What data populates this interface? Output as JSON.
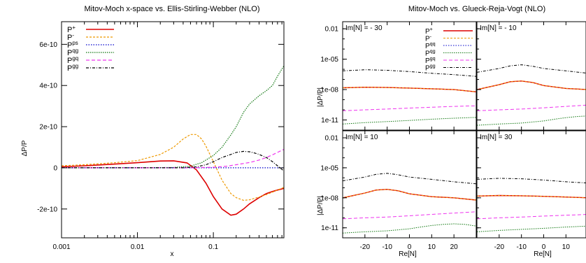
{
  "chart_data": [
    {
      "type": "line",
      "title": "Mitov-Moch x-space vs. Ellis-Stirling-Webber (NLO)",
      "xlabel": "x",
      "ylabel": "ΔP/P",
      "xscale": "log",
      "xlim": [
        0.001,
        0.85
      ],
      "ylim": [
        -3.4e-10,
        7.1e-10
      ],
      "x_ticks": [
        0.001,
        0.01,
        0.1
      ],
      "x_tick_labels": [
        "0.001",
        "0.01",
        "0.1"
      ],
      "y_ticks": [
        -2e-10,
        0,
        2e-10,
        4e-10,
        6e-10
      ],
      "y_tick_labels": [
        "-2e-10",
        "0",
        "2e-10",
        "4e-10",
        "6e-10"
      ],
      "grid": false,
      "legend_position": "top-left",
      "series": [
        {
          "name": "P+",
          "base": "P",
          "sup": "+",
          "color": "#dd0000",
          "dash": "",
          "width": 1.6,
          "x": [
            0.001,
            0.002,
            0.005,
            0.01,
            0.02,
            0.03,
            0.045,
            0.06,
            0.08,
            0.1,
            0.13,
            0.17,
            0.2,
            0.25,
            0.3,
            0.4,
            0.5,
            0.6,
            0.7,
            0.85
          ],
          "y": [
            5e-12,
            1e-11,
            1.8e-11,
            2.5e-11,
            3.3e-11,
            3.4e-11,
            2.4e-11,
            -1e-11,
            -7.5e-11,
            -1.4e-10,
            -2e-10,
            -2.3e-10,
            -2.25e-10,
            -2e-10,
            -1.75e-10,
            -1.45e-10,
            -1.25e-10,
            -1.15e-10,
            -1.08e-10,
            -1e-10
          ]
        },
        {
          "name": "P-",
          "base": "P",
          "sup": "-",
          "color": "#ee9900",
          "dash": "3,2",
          "width": 1.2,
          "x": [
            0.001,
            0.002,
            0.005,
            0.01,
            0.02,
            0.03,
            0.04,
            0.05,
            0.06,
            0.07,
            0.08,
            0.1,
            0.13,
            0.17,
            0.2,
            0.25,
            0.3,
            0.4,
            0.5,
            0.6,
            0.7,
            0.85
          ],
          "y": [
            1e-11,
            1.5e-11,
            2.5e-11,
            3.5e-11,
            6.5e-11,
            1e-10,
            1.4e-10,
            1.62e-10,
            1.62e-10,
            1.4e-10,
            1.05e-10,
            3e-11,
            -6e-11,
            -1.25e-10,
            -1.45e-10,
            -1.58e-10,
            -1.55e-10,
            -1.42e-10,
            -1.3e-10,
            -1.18e-10,
            -1.08e-10,
            -9.5e-11
          ]
        },
        {
          "name": "Pps",
          "base": "P",
          "sup": "ps",
          "color": "#0000cc",
          "dash": "1.5,2",
          "width": 1.2,
          "x": [
            0.001,
            0.01,
            0.1,
            0.85
          ],
          "y": [
            0,
            0,
            0,
            0
          ]
        },
        {
          "name": "Pqg",
          "base": "P",
          "sup": "qg",
          "color": "#117711",
          "dash": "1.5,1.5",
          "width": 1.2,
          "x": [
            0.001,
            0.01,
            0.03,
            0.05,
            0.07,
            0.1,
            0.13,
            0.17,
            0.2,
            0.25,
            0.3,
            0.4,
            0.5,
            0.6,
            0.7,
            0.8,
            0.85
          ],
          "y": [
            0,
            0,
            2e-12,
            8e-12,
            2.5e-11,
            6e-11,
            1e-10,
            1.6e-10,
            2e-10,
            2.7e-10,
            3.1e-10,
            3.5e-10,
            3.75e-10,
            4e-10,
            4.45e-10,
            4.8e-10,
            4.95e-10
          ]
        },
        {
          "name": "Pgq",
          "base": "P",
          "sup": "gq",
          "color": "#ee33ee",
          "dash": "5,3",
          "width": 1.2,
          "x": [
            0.001,
            0.01,
            0.05,
            0.1,
            0.15,
            0.2,
            0.3,
            0.4,
            0.5,
            0.6,
            0.7,
            0.85
          ],
          "y": [
            0,
            0,
            0,
            3e-12,
            8e-12,
            1.5e-11,
            2.6e-11,
            3.8e-11,
            5e-11,
            6.3e-11,
            7.5e-11,
            9e-11
          ]
        },
        {
          "name": "Pgg",
          "base": "P",
          "sup": "gg",
          "color": "#000000",
          "dash": "4,2,1,2",
          "width": 1.2,
          "x": [
            0.001,
            0.01,
            0.04,
            0.06,
            0.08,
            0.1,
            0.13,
            0.17,
            0.2,
            0.25,
            0.3,
            0.35,
            0.4,
            0.5,
            0.6,
            0.7,
            0.85
          ],
          "y": [
            0,
            0,
            0,
            5e-12,
            1.5e-11,
            3e-11,
            5e-11,
            6.5e-11,
            7.5e-11,
            8e-11,
            7.8e-11,
            7.2e-11,
            6.5e-11,
            5e-11,
            3e-11,
            1e-11,
            -1.5e-11
          ]
        }
      ]
    },
    {
      "type": "line",
      "title": "Mitov-Moch vs. Glueck-Reja-Vogt (NLO)",
      "xlabel": "Re[N]",
      "ylabel": "|ΔP/P|",
      "yscale": "log",
      "xlim": [
        -30,
        30
      ],
      "ylim": [
        1e-12,
        0.05
      ],
      "x_ticks": [
        -20,
        -10,
        0,
        10,
        20
      ],
      "x_tick_labels": [
        "-20",
        "-10",
        "0",
        "10",
        "20"
      ],
      "y_ticks": [
        0.01,
        1e-05,
        1e-08,
        1e-11
      ],
      "y_tick_labels": [
        "0.01",
        "1e-05",
        "1e-08",
        "1e-11"
      ],
      "grid": false,
      "legend_position": "top-left",
      "legend_labels": [
        {
          "base": "P",
          "sup": "+"
        },
        {
          "base": "P",
          "sup": "-"
        },
        {
          "base": "P",
          "sup": "qq"
        },
        {
          "base": "P",
          "sup": "qg"
        },
        {
          "base": "P",
          "sup": "gq"
        },
        {
          "base": "P",
          "sup": "gg"
        }
      ],
      "series_styles": [
        {
          "color": "#dd0000",
          "dash": "",
          "width": 1.4
        },
        {
          "color": "#ee9900",
          "dash": "3,2",
          "width": 1.0
        },
        {
          "color": "#0000cc",
          "dash": "1.5,2",
          "width": 1.0
        },
        {
          "color": "#117711",
          "dash": "1.5,1.5",
          "width": 1.0
        },
        {
          "color": "#ee33ee",
          "dash": "5,3",
          "width": 1.0
        },
        {
          "color": "#000000",
          "dash": "4,2,1,2",
          "width": 1.0
        }
      ],
      "panels": [
        {
          "label": "Im[N] = - 30",
          "row": 0,
          "col": 0,
          "series": [
            {
              "x": [
                -30,
                -20,
                -10,
                0,
                10,
                20,
                30
              ],
              "y": [
                1.5e-08,
                1.7e-08,
                1.6e-08,
                1.4e-08,
                1.2e-08,
                1e-08,
                6e-09
              ]
            },
            {
              "x": [
                -30,
                -20,
                -10,
                0,
                10,
                20,
                30
              ],
              "y": [
                1.5e-08,
                1.7e-08,
                1.6e-08,
                1.4e-08,
                1.2e-08,
                1e-08,
                6e-09
              ]
            },
            {
              "x": [],
              "y": []
            },
            {
              "x": [
                -30,
                -20,
                -10,
                0,
                10,
                20,
                30
              ],
              "y": [
                4e-12,
                5.5e-12,
                7e-12,
                9e-12,
                1.2e-11,
                1.5e-11,
                1.8e-11
              ]
            },
            {
              "x": [
                -30,
                -20,
                -10,
                0,
                10,
                20,
                30
              ],
              "y": [
                8e-11,
                1e-10,
                1.2e-10,
                1.5e-10,
                1.8e-10,
                2.2e-10,
                2.5e-10
              ]
            },
            {
              "x": [
                -30,
                -20,
                -10,
                0,
                10,
                20,
                30
              ],
              "y": [
                7e-07,
                9e-07,
                8e-07,
                6e-07,
                4e-07,
                3e-07,
                2e-07
              ]
            }
          ]
        },
        {
          "label": "Im[N] = - 10",
          "row": 0,
          "col": 1,
          "series": [
            {
              "x": [
                -30,
                -20,
                -15,
                -10,
                -5,
                0,
                10,
                20,
                30
              ],
              "y": [
                1e-08,
                3e-08,
                6e-08,
                7e-08,
                5e-08,
                2.5e-08,
                1.3e-08,
                1e-08,
                6e-09
              ]
            },
            {
              "x": [
                -30,
                -20,
                -15,
                -10,
                -5,
                0,
                10,
                20,
                30
              ],
              "y": [
                1e-08,
                3e-08,
                6e-08,
                7e-08,
                5e-08,
                2.5e-08,
                1.3e-08,
                1e-08,
                6e-09
              ]
            },
            {
              "x": [],
              "y": []
            },
            {
              "x": [
                -30,
                -20,
                -10,
                0,
                5,
                10,
                15,
                20,
                25,
                30
              ],
              "y": [
                3e-12,
                4e-12,
                5e-12,
                8e-12,
                1.2e-11,
                1.7e-11,
                2.2e-11,
                2.5e-11,
                2.2e-11,
                1.5e-11
              ]
            },
            {
              "x": [
                -30,
                -20,
                -10,
                0,
                10,
                20,
                30
              ],
              "y": [
                8e-11,
                1e-10,
                1.2e-10,
                1.6e-10,
                2.2e-10,
                3e-10,
                4e-10
              ]
            },
            {
              "x": [
                -30,
                -20,
                -15,
                -10,
                -5,
                0,
                10,
                20,
                30
              ],
              "y": [
                5e-07,
                1.2e-06,
                2.2e-06,
                2.8e-06,
                2e-06,
                1.2e-06,
                7e-07,
                4e-07,
                2.5e-07
              ]
            }
          ]
        },
        {
          "label": "Im[N] = 10",
          "row": 1,
          "col": 0,
          "series": [
            {
              "x": [
                -30,
                -20,
                -15,
                -10,
                -5,
                0,
                10,
                20,
                30
              ],
              "y": [
                1e-08,
                3e-08,
                6e-08,
                7e-08,
                5e-08,
                2.5e-08,
                1.3e-08,
                1e-08,
                6e-09
              ]
            },
            {
              "x": [
                -30,
                -20,
                -15,
                -10,
                -5,
                0,
                10,
                20,
                30
              ],
              "y": [
                1e-08,
                3e-08,
                6e-08,
                7e-08,
                5e-08,
                2.5e-08,
                1.3e-08,
                1e-08,
                6e-09
              ]
            },
            {
              "x": [],
              "y": []
            },
            {
              "x": [
                -30,
                -20,
                -10,
                0,
                5,
                10,
                15,
                20,
                25,
                30
              ],
              "y": [
                3e-12,
                4e-12,
                5e-12,
                8e-12,
                1.2e-11,
                1.7e-11,
                2.2e-11,
                2.5e-11,
                2.2e-11,
                1.5e-11
              ]
            },
            {
              "x": [
                -30,
                -20,
                -10,
                0,
                10,
                20,
                30
              ],
              "y": [
                8e-11,
                1e-10,
                1.2e-10,
                1.6e-10,
                2.2e-10,
                3e-10,
                4e-10
              ]
            },
            {
              "x": [
                -30,
                -20,
                -15,
                -10,
                -5,
                0,
                10,
                20,
                30
              ],
              "y": [
                5e-07,
                1.2e-06,
                2.2e-06,
                2.8e-06,
                2e-06,
                1.2e-06,
                7e-07,
                4e-07,
                2.5e-07
              ]
            }
          ]
        },
        {
          "label": "Im[N] = 30",
          "row": 1,
          "col": 1,
          "series": [
            {
              "x": [
                -30,
                -20,
                -10,
                0,
                10,
                20,
                30
              ],
              "y": [
                1.5e-08,
                1.7e-08,
                1.6e-08,
                1.4e-08,
                1.2e-08,
                1e-08,
                6e-09
              ]
            },
            {
              "x": [
                -30,
                -20,
                -10,
                0,
                10,
                20,
                30
              ],
              "y": [
                1.5e-08,
                1.7e-08,
                1.6e-08,
                1.4e-08,
                1.2e-08,
                1e-08,
                6e-09
              ]
            },
            {
              "x": [],
              "y": []
            },
            {
              "x": [
                -30,
                -20,
                -10,
                0,
                10,
                20,
                30
              ],
              "y": [
                4e-12,
                5.5e-12,
                7e-12,
                9e-12,
                1.2e-11,
                1.5e-11,
                1.8e-11
              ]
            },
            {
              "x": [
                -30,
                -20,
                -10,
                0,
                10,
                20,
                30
              ],
              "y": [
                8e-11,
                1e-10,
                1.2e-10,
                1.5e-10,
                1.8e-10,
                2.2e-10,
                2.5e-10
              ]
            },
            {
              "x": [
                -30,
                -20,
                -10,
                0,
                10,
                20,
                30
              ],
              "y": [
                7e-07,
                9e-07,
                8e-07,
                6e-07,
                4e-07,
                3e-07,
                2e-07
              ]
            }
          ]
        }
      ]
    }
  ]
}
